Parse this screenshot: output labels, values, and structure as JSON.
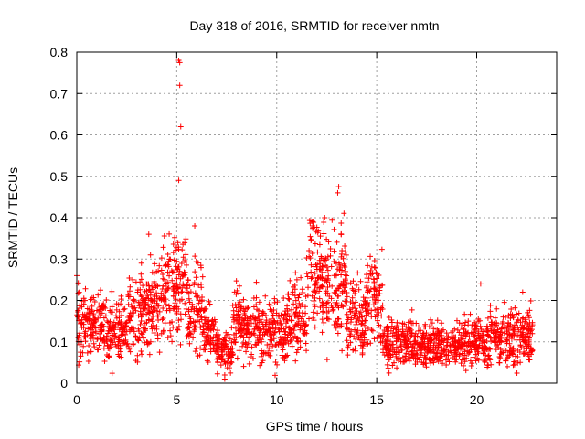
{
  "chart_data": {
    "type": "scatter",
    "title": "Day 318 of 2016, SRMTID for receiver nmtn",
    "xlabel": "GPS time / hours",
    "ylabel": "SRMTID / TECUs",
    "xlim": [
      0,
      24
    ],
    "ylim": [
      0,
      0.8
    ],
    "xticks": [
      0,
      5,
      10,
      15,
      20
    ],
    "xtick_labels": [
      "0",
      "5",
      "10",
      "15",
      "20"
    ],
    "yticks": [
      0,
      0.1,
      0.2,
      0.3,
      0.4,
      0.5,
      0.6,
      0.7,
      0.8
    ],
    "ytick_labels": [
      "0",
      "0.1",
      "0.2",
      "0.3",
      "0.4",
      "0.5",
      "0.6",
      "0.7",
      "0.8"
    ],
    "grid": true,
    "marker": "+",
    "color": "#ff0000",
    "x_range_of_data": [
      0,
      22.8
    ],
    "segment_means": [
      {
        "x": [
          0.0,
          0.5
        ],
        "y": 0.15
      },
      {
        "x": [
          0.5,
          1.5
        ],
        "y": 0.14
      },
      {
        "x": [
          1.5,
          2.5
        ],
        "y": 0.13
      },
      {
        "x": [
          2.5,
          3.5
        ],
        "y": 0.17
      },
      {
        "x": [
          3.5,
          4.2
        ],
        "y": 0.19
      },
      {
        "x": [
          4.2,
          5.0
        ],
        "y": 0.22
      },
      {
        "x": [
          5.0,
          5.5
        ],
        "y": 0.25
      },
      {
        "x": [
          5.5,
          6.3
        ],
        "y": 0.18
      },
      {
        "x": [
          6.3,
          7.0
        ],
        "y": 0.12
      },
      {
        "x": [
          7.0,
          7.8
        ],
        "y": 0.08
      },
      {
        "x": [
          7.8,
          9.0
        ],
        "y": 0.14
      },
      {
        "x": [
          9.0,
          10.5
        ],
        "y": 0.13
      },
      {
        "x": [
          10.5,
          11.5
        ],
        "y": 0.16
      },
      {
        "x": [
          11.5,
          12.5
        ],
        "y": 0.25
      },
      {
        "x": [
          12.5,
          13.5
        ],
        "y": 0.24
      },
      {
        "x": [
          13.5,
          14.5
        ],
        "y": 0.16
      },
      {
        "x": [
          14.5,
          15.3
        ],
        "y": 0.2
      },
      {
        "x": [
          15.3,
          17.0
        ],
        "y": 0.1
      },
      {
        "x": [
          17.0,
          19.0
        ],
        "y": 0.09
      },
      {
        "x": [
          19.0,
          20.5
        ],
        "y": 0.1
      },
      {
        "x": [
          20.5,
          22.8
        ],
        "y": 0.11
      }
    ],
    "notable_points": [
      {
        "x": 5.1,
        "y": 0.78
      },
      {
        "x": 5.15,
        "y": 0.775
      },
      {
        "x": 5.15,
        "y": 0.72
      },
      {
        "x": 5.2,
        "y": 0.62
      },
      {
        "x": 5.1,
        "y": 0.49
      },
      {
        "x": 13.1,
        "y": 0.475
      },
      {
        "x": 13.05,
        "y": 0.46
      },
      {
        "x": 12.4,
        "y": 0.4
      },
      {
        "x": 11.8,
        "y": 0.38
      },
      {
        "x": 0.0,
        "y": 0.26
      },
      {
        "x": 3.6,
        "y": 0.36
      },
      {
        "x": 5.9,
        "y": 0.38
      },
      {
        "x": 7.4,
        "y": 0.01
      },
      {
        "x": 7.4,
        "y": 0.02
      },
      {
        "x": 20.2,
        "y": 0.24
      },
      {
        "x": 22.3,
        "y": 0.22
      }
    ]
  }
}
